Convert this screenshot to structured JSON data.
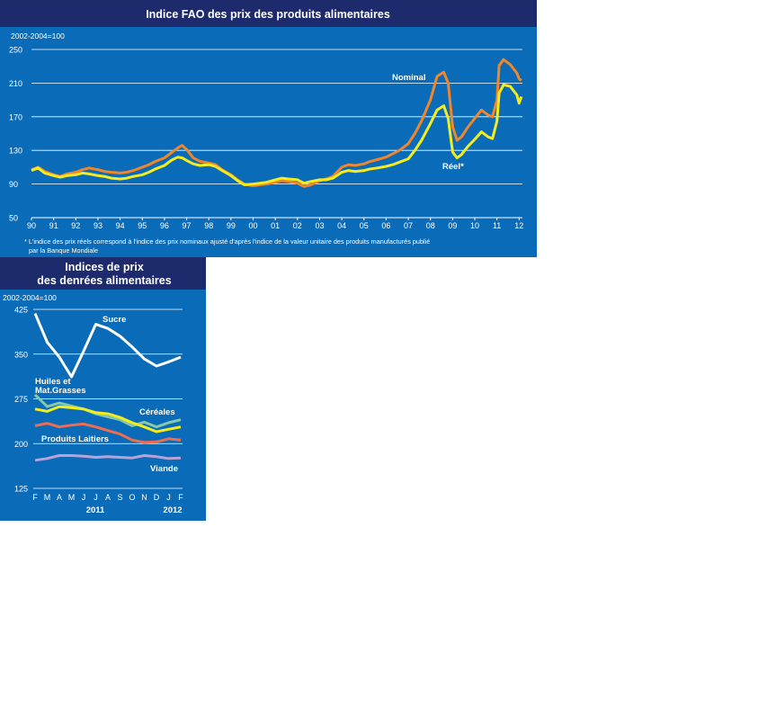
{
  "chart_data": [
    {
      "type": "line",
      "title": "Indice FAO des prix des produits alimentaires",
      "unit": "2002-2004=100",
      "ylim": [
        50,
        250
      ],
      "yticks": [
        50,
        90,
        130,
        170,
        210,
        250
      ],
      "grid": true,
      "xticks": [
        "90",
        "91",
        "92",
        "93",
        "94",
        "95",
        "96",
        "97",
        "98",
        "99",
        "00",
        "01",
        "02",
        "03",
        "04",
        "05",
        "06",
        "07",
        "08",
        "09",
        "10",
        "11",
        "12"
      ],
      "x_unit": "year",
      "footnote": "* L'indice des prix réels correspond à l'indice des prix nominaux ajusté d'après l'indice de la valeur unitaire des produits  manufacturés publié par la Banque Mondiale",
      "series": [
        {
          "name": "Nominal",
          "color": "#f0862a",
          "points": [
            [
              1990.0,
              107
            ],
            [
              1990.3,
              110
            ],
            [
              1990.6,
              105
            ],
            [
              1991.0,
              101
            ],
            [
              1991.3,
              99
            ],
            [
              1991.6,
              102
            ],
            [
              1992.0,
              104
            ],
            [
              1992.3,
              107
            ],
            [
              1992.6,
              109
            ],
            [
              1993.0,
              107
            ],
            [
              1993.3,
              105
            ],
            [
              1993.6,
              104
            ],
            [
              1994.0,
              103
            ],
            [
              1994.3,
              104
            ],
            [
              1994.6,
              106
            ],
            [
              1995.0,
              110
            ],
            [
              1995.3,
              113
            ],
            [
              1995.6,
              117
            ],
            [
              1996.0,
              121
            ],
            [
              1996.3,
              127
            ],
            [
              1996.6,
              133
            ],
            [
              1996.8,
              136
            ],
            [
              1997.0,
              131
            ],
            [
              1997.3,
              121
            ],
            [
              1997.6,
              117
            ],
            [
              1998.0,
              115
            ],
            [
              1998.3,
              113
            ],
            [
              1998.6,
              107
            ],
            [
              1999.0,
              101
            ],
            [
              1999.3,
              95
            ],
            [
              1999.6,
              90
            ],
            [
              2000.0,
              88
            ],
            [
              2000.3,
              89
            ],
            [
              2000.6,
              90
            ],
            [
              2001.0,
              92
            ],
            [
              2001.3,
              94
            ],
            [
              2001.6,
              93
            ],
            [
              2002.0,
              91
            ],
            [
              2002.3,
              87
            ],
            [
              2002.6,
              89
            ],
            [
              2003.0,
              94
            ],
            [
              2003.3,
              96
            ],
            [
              2003.6,
              99
            ],
            [
              2004.0,
              110
            ],
            [
              2004.3,
              113
            ],
            [
              2004.6,
              112
            ],
            [
              2005.0,
              114
            ],
            [
              2005.3,
              117
            ],
            [
              2005.6,
              119
            ],
            [
              2006.0,
              122
            ],
            [
              2006.3,
              126
            ],
            [
              2006.6,
              130
            ],
            [
              2007.0,
              138
            ],
            [
              2007.3,
              150
            ],
            [
              2007.6,
              165
            ],
            [
              2008.0,
              190
            ],
            [
              2008.3,
              218
            ],
            [
              2008.6,
              223
            ],
            [
              2008.8,
              210
            ],
            [
              2009.0,
              158
            ],
            [
              2009.2,
              142
            ],
            [
              2009.4,
              146
            ],
            [
              2009.7,
              158
            ],
            [
              2010.0,
              168
            ],
            [
              2010.3,
              178
            ],
            [
              2010.6,
              172
            ],
            [
              2010.8,
              170
            ],
            [
              2011.0,
              190
            ],
            [
              2011.1,
              231
            ],
            [
              2011.3,
              238
            ],
            [
              2011.6,
              232
            ],
            [
              2011.9,
              222
            ],
            [
              2012.0,
              215
            ],
            [
              2012.1,
              213
            ]
          ]
        },
        {
          "name": "Réel*",
          "color": "#f5ec1e",
          "points": [
            [
              1990.0,
              106
            ],
            [
              1990.3,
              109
            ],
            [
              1990.6,
              103
            ],
            [
              1991.0,
              100
            ],
            [
              1991.3,
              98
            ],
            [
              1991.6,
              100
            ],
            [
              1992.0,
              101
            ],
            [
              1992.3,
              103
            ],
            [
              1992.6,
              102
            ],
            [
              1993.0,
              100
            ],
            [
              1993.3,
              99
            ],
            [
              1993.6,
              97
            ],
            [
              1994.0,
              96
            ],
            [
              1994.3,
              97
            ],
            [
              1994.6,
              99
            ],
            [
              1995.0,
              101
            ],
            [
              1995.3,
              104
            ],
            [
              1995.6,
              108
            ],
            [
              1996.0,
              112
            ],
            [
              1996.3,
              118
            ],
            [
              1996.6,
              122
            ],
            [
              1996.8,
              121
            ],
            [
              1997.0,
              118
            ],
            [
              1997.3,
              114
            ],
            [
              1997.6,
              112
            ],
            [
              1998.0,
              113
            ],
            [
              1998.3,
              111
            ],
            [
              1998.6,
              106
            ],
            [
              1999.0,
              100
            ],
            [
              1999.3,
              94
            ],
            [
              1999.6,
              89
            ],
            [
              2000.0,
              90
            ],
            [
              2000.3,
              91
            ],
            [
              2000.6,
              92
            ],
            [
              2001.0,
              95
            ],
            [
              2001.3,
              97
            ],
            [
              2001.6,
              96
            ],
            [
              2002.0,
              95
            ],
            [
              2002.3,
              91
            ],
            [
              2002.6,
              93
            ],
            [
              2003.0,
              95
            ],
            [
              2003.3,
              95
            ],
            [
              2003.6,
              97
            ],
            [
              2004.0,
              104
            ],
            [
              2004.3,
              106
            ],
            [
              2004.6,
              105
            ],
            [
              2005.0,
              106
            ],
            [
              2005.3,
              108
            ],
            [
              2005.6,
              109
            ],
            [
              2006.0,
              111
            ],
            [
              2006.3,
              113
            ],
            [
              2006.6,
              116
            ],
            [
              2007.0,
              120
            ],
            [
              2007.3,
              130
            ],
            [
              2007.6,
              142
            ],
            [
              2008.0,
              162
            ],
            [
              2008.3,
              178
            ],
            [
              2008.6,
              183
            ],
            [
              2008.8,
              168
            ],
            [
              2009.0,
              128
            ],
            [
              2009.2,
              121
            ],
            [
              2009.4,
              125
            ],
            [
              2009.7,
              135
            ],
            [
              2010.0,
              143
            ],
            [
              2010.3,
              152
            ],
            [
              2010.6,
              146
            ],
            [
              2010.8,
              144
            ],
            [
              2011.0,
              165
            ],
            [
              2011.1,
              198
            ],
            [
              2011.3,
              208
            ],
            [
              2011.6,
              206
            ],
            [
              2011.9,
              196
            ],
            [
              2012.0,
              186
            ],
            [
              2012.1,
              194
            ]
          ]
        }
      ],
      "series_labels": {
        "Nominal": {
          "text": "Nominal"
        },
        "Réel*": {
          "text": "Réel*"
        }
      }
    },
    {
      "type": "line",
      "title_line1": "Indices de prix",
      "title_line2": "des denrées alimentaires",
      "unit": "2002-2004=100",
      "ylim": [
        125,
        425
      ],
      "yticks": [
        125,
        200,
        275,
        350,
        425
      ],
      "grid": true,
      "categories": [
        "F",
        "M",
        "A",
        "M",
        "J",
        "J",
        "A",
        "S",
        "O",
        "N",
        "D",
        "J",
        "F"
      ],
      "year_labels": [
        "2011",
        "2012"
      ],
      "series": [
        {
          "name": "Sucre",
          "color": "#ffffff",
          "values": [
            418,
            370,
            345,
            312,
            355,
            400,
            393,
            380,
            362,
            342,
            330,
            337,
            345
          ]
        },
        {
          "name": "Huiles et Mat.Grasses",
          "color": "#86c9a9",
          "values": [
            282,
            262,
            268,
            263,
            258,
            250,
            245,
            240,
            230,
            236,
            228,
            235,
            240
          ]
        },
        {
          "name": "Céréales",
          "color": "#f5ec1e",
          "values": [
            258,
            254,
            262,
            260,
            258,
            252,
            250,
            244,
            235,
            228,
            220,
            224,
            228
          ]
        },
        {
          "name": "Produits Laitiers",
          "color": "#ee6d4f",
          "values": [
            230,
            234,
            228,
            231,
            233,
            228,
            222,
            216,
            206,
            202,
            203,
            208,
            206
          ]
        },
        {
          "name": "Viande",
          "color": "#b9a3d5",
          "values": [
            172,
            175,
            180,
            180,
            179,
            177,
            178,
            177,
            176,
            180,
            178,
            175,
            176
          ]
        }
      ],
      "series_labels": {
        "Sucre": "Sucre",
        "Huiles_line1": "Huiles et",
        "Huiles_line2": "Mat.Grasses",
        "Céréales": "Céréales",
        "Produits Laitiers": "Produits Laitiers",
        "Viande": "Viande"
      }
    }
  ]
}
